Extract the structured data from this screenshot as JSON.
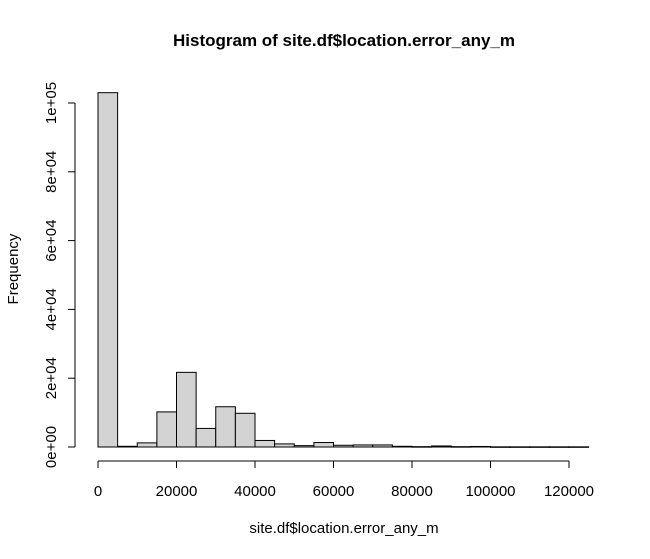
{
  "chart_data": {
    "type": "bar",
    "title": "Histogram of site.df$location.error_any_m",
    "xlabel": "site.df$location.error_any_m",
    "ylabel": "Frequency",
    "bin_width": 5000,
    "bins_start": [
      0,
      5000,
      10000,
      15000,
      20000,
      25000,
      30000,
      35000,
      40000,
      45000,
      50000,
      55000,
      60000,
      65000,
      70000,
      75000,
      80000,
      85000,
      90000,
      95000,
      100000,
      105000,
      110000,
      115000,
      120000
    ],
    "values": [
      103000,
      200,
      1200,
      10200,
      21700,
      5400,
      11700,
      9800,
      1900,
      900,
      400,
      1300,
      500,
      600,
      600,
      200,
      100,
      300,
      100,
      150,
      50,
      50,
      50,
      50,
      50
    ],
    "xlim": [
      0,
      125000
    ],
    "ylim": [
      0,
      105000
    ],
    "x_ticks": [
      0,
      20000,
      40000,
      60000,
      80000,
      100000,
      120000
    ],
    "x_tick_labels": [
      "0",
      "20000",
      "40000",
      "60000",
      "80000",
      "100000",
      "120000"
    ],
    "y_ticks": [
      0,
      20000,
      40000,
      60000,
      80000,
      100000
    ],
    "y_tick_labels": [
      "0e+00",
      "2e+04",
      "4e+04",
      "6e+04",
      "8e+04",
      "1e+05"
    ],
    "grid": false,
    "colors": {
      "bar_fill": "#d3d3d3",
      "bar_stroke": "#000000"
    }
  }
}
